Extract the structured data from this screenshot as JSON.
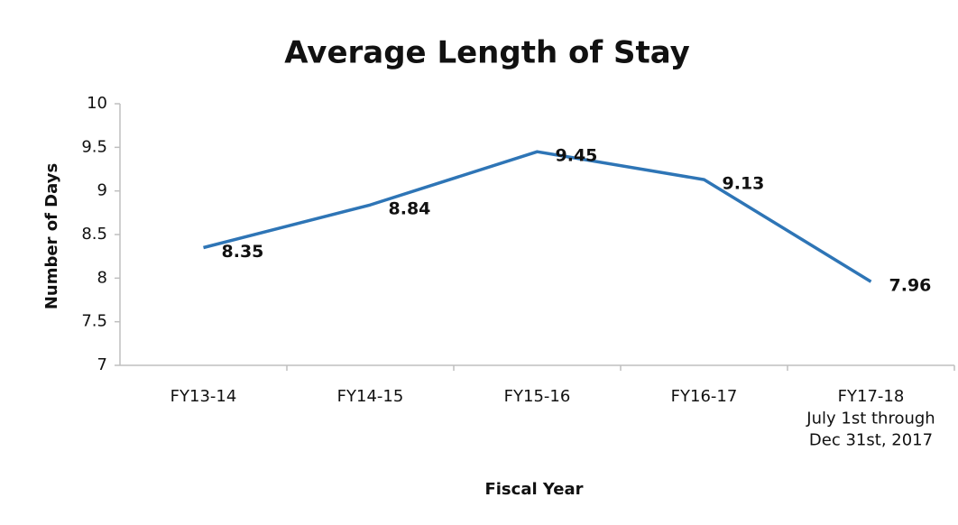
{
  "chart_data": {
    "type": "line",
    "title": "Average Length of Stay",
    "x_label": "Fiscal Year",
    "y_label": "Number of Days",
    "categories": [
      "FY13-14",
      "FY14-15",
      "FY15-16",
      "FY16-17",
      "FY17-18\nJuly 1st through\nDec 31st, 2017"
    ],
    "series": [
      {
        "name": "Average Length of Stay",
        "color": "#2e75b6",
        "values": [
          8.35,
          8.84,
          9.45,
          9.13,
          7.96
        ]
      }
    ],
    "ylim": [
      7,
      10
    ],
    "yticks": [
      7,
      7.5,
      8,
      8.5,
      9,
      9.5,
      10
    ],
    "grid": false
  }
}
